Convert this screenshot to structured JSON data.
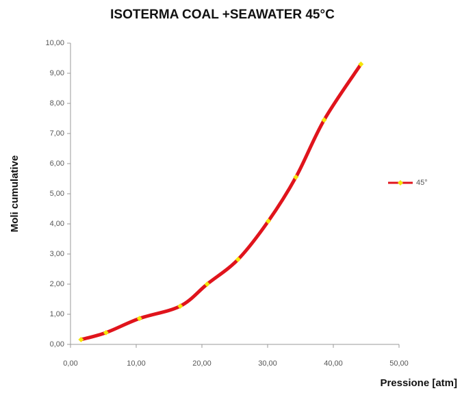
{
  "chart_data": {
    "type": "line",
    "title": "ISOTERMA COAL +SEAWATER 45°C",
    "xlabel": "Pressione [atm]",
    "ylabel": "Moli cumulative",
    "x": [
      1.6,
      5.4,
      10.5,
      16.7,
      20.8,
      25.5,
      30.1,
      34.3,
      38.6,
      44.2
    ],
    "series": [
      {
        "name": "45°",
        "color": "#e0141c",
        "marker_color": "#f5e60a",
        "values": [
          0.16,
          0.39,
          0.86,
          1.27,
          2.0,
          2.82,
          4.09,
          5.55,
          7.45,
          9.3
        ]
      }
    ],
    "xlim": [
      0,
      50
    ],
    "xticks": [
      {
        "value": 0,
        "label": "0,00"
      },
      {
        "value": 10,
        "label": "10,00"
      },
      {
        "value": 20,
        "label": "20,00"
      },
      {
        "value": 30,
        "label": "30,00"
      },
      {
        "value": 40,
        "label": "40,00"
      },
      {
        "value": 50,
        "label": "50,00"
      }
    ],
    "ylim": [
      0,
      10
    ],
    "yticks": [
      {
        "value": 0,
        "label": "0,00"
      },
      {
        "value": 1,
        "label": "1,00"
      },
      {
        "value": 2,
        "label": "2,00"
      },
      {
        "value": 3,
        "label": "3,00"
      },
      {
        "value": 4,
        "label": "4,00"
      },
      {
        "value": 5,
        "label": "5,00"
      },
      {
        "value": 6,
        "label": "6,00"
      },
      {
        "value": 7,
        "label": "7,00"
      },
      {
        "value": 8,
        "label": "8,00"
      },
      {
        "value": 9,
        "label": "9,00"
      },
      {
        "value": 10,
        "label": "10,00"
      }
    ],
    "smooth": true,
    "legend": "right"
  }
}
